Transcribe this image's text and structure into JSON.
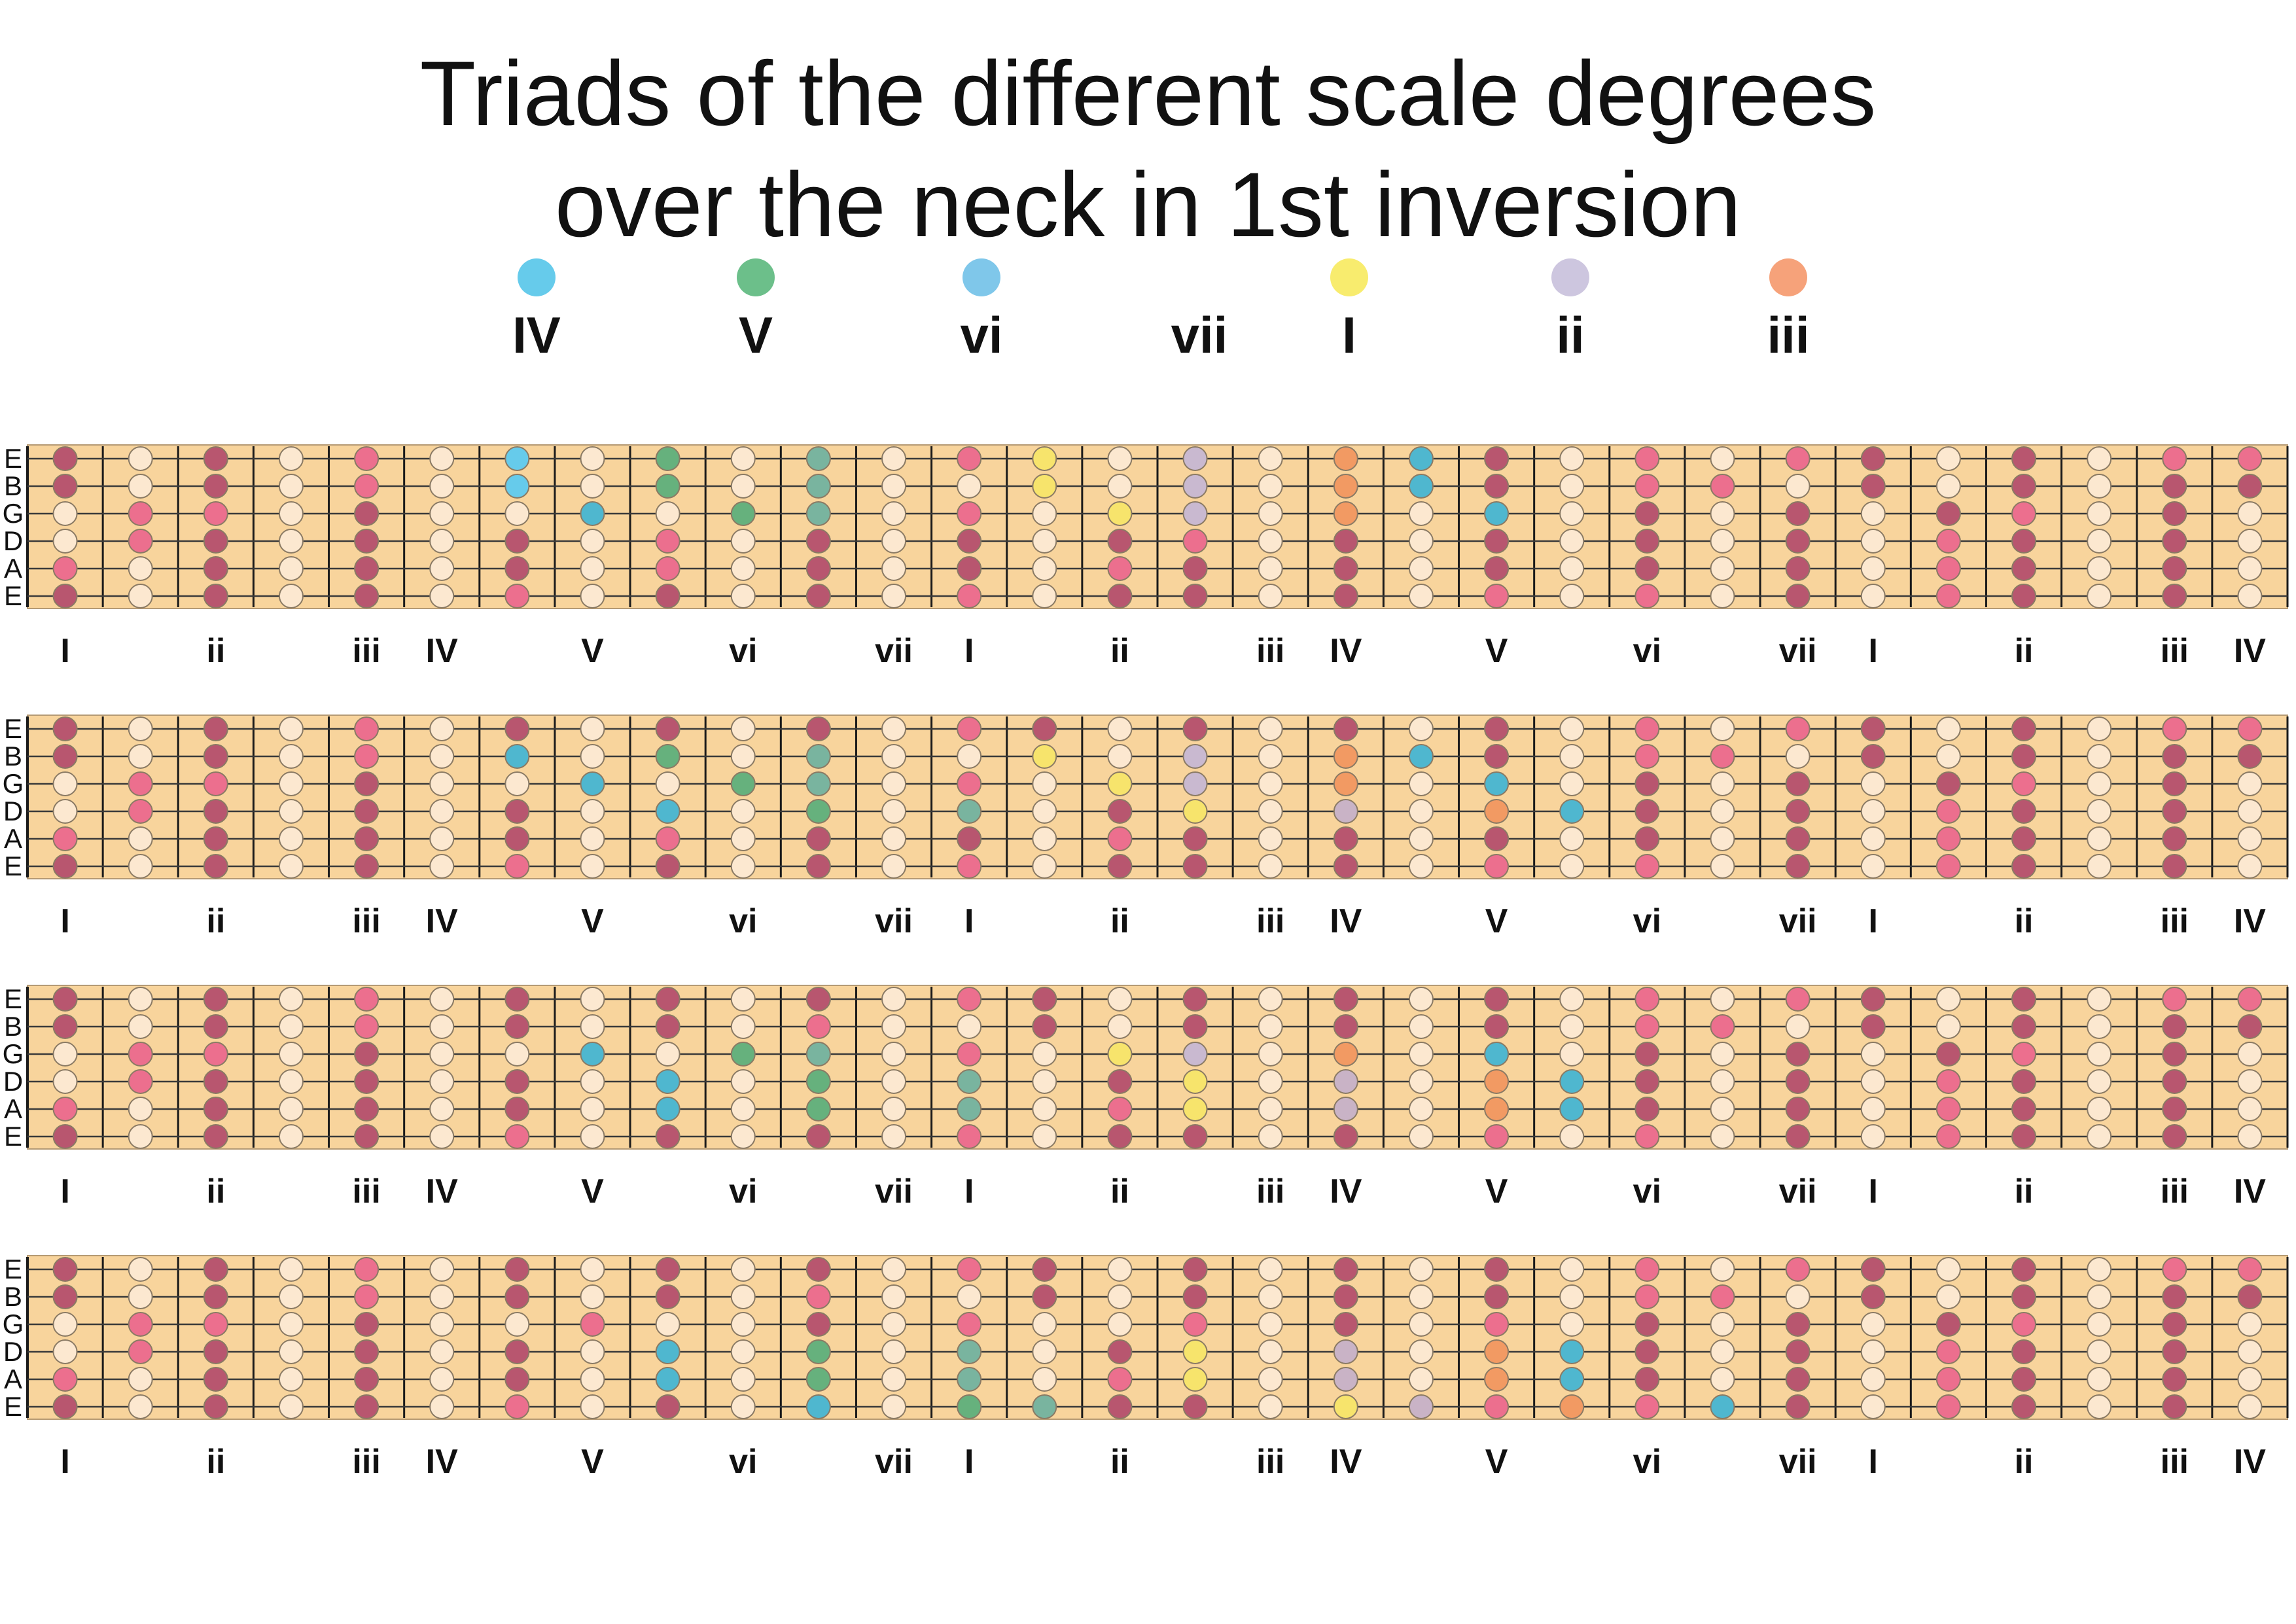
{
  "title": [
    "Triads of the different scale degrees",
    "over the neck in 1st inversion"
  ],
  "colors": {
    "fretboard": "#f8d49c",
    "frame": "#b59a74",
    "string": "#3a3a3a",
    "fret": "#1a1a1a",
    "root": "#b8566f",
    "scale": "#ec6f8e",
    "other": "#fce8d0",
    "IV": "#66cbeb",
    "V": "#6cbf8a",
    "vi": "#7fc7ea",
    "vii": "#ffffff",
    "I": "#f8ec6e",
    "ii": "#cdc6df",
    "iii": "#f6a27a",
    "blue": "#4fb7cf",
    "green": "#66b17d",
    "teal": "#79b49f",
    "yellow": "#f7e46c",
    "lavender": "#c9b9d0",
    "orange": "#f29a63",
    "purple": "#c9b3c6"
  },
  "legend": [
    {
      "label": "IV",
      "color_key": "IV"
    },
    {
      "label": "V",
      "color_key": "V"
    },
    {
      "label": "vi",
      "color_key": "vi"
    },
    {
      "label": "vii",
      "color_key": "vii"
    },
    {
      "label": "I",
      "color_key": "I"
    },
    {
      "label": "ii",
      "color_key": "ii"
    },
    {
      "label": "iii",
      "color_key": "iii"
    }
  ],
  "string_labels": [
    "E",
    "B",
    "G",
    "D",
    "A",
    "E"
  ],
  "degree_labels": [
    "I",
    "ii",
    "iii",
    "IV",
    "V",
    "vi",
    "vii",
    "I",
    "ii",
    "iii",
    "IV",
    "V",
    "vi",
    "vii",
    "I",
    "ii",
    "iii",
    "IV"
  ],
  "label_frets": [
    1,
    3,
    5,
    6,
    8,
    10,
    12,
    13,
    15,
    17,
    18,
    20,
    22,
    24,
    25,
    27,
    29,
    30
  ],
  "fret_count": 30,
  "base_pattern": [
    [
      "r",
      "o",
      "r",
      "o",
      "s",
      "o",
      "r",
      "o",
      "r",
      "o",
      "r",
      "o",
      "s",
      "r",
      "o",
      "r",
      "o",
      "r",
      "o",
      "r",
      "o",
      "s",
      "o",
      "s",
      "r",
      "o",
      "r",
      "o",
      "s",
      "s"
    ],
    [
      "r",
      "o",
      "r",
      "o",
      "s",
      "o",
      "r",
      "o",
      "r",
      "o",
      "s",
      "o",
      "o",
      "r",
      "o",
      "r",
      "o",
      "r",
      "o",
      "r",
      "o",
      "s",
      "s",
      "o",
      "r",
      "o",
      "r",
      "o",
      "r",
      "r"
    ],
    [
      "o",
      "s",
      "s",
      "o",
      "r",
      "o",
      "o",
      "s",
      "o",
      "o",
      "r",
      "o",
      "s",
      "o",
      "o",
      "s",
      "o",
      "r",
      "o",
      "s",
      "o",
      "r",
      "o",
      "r",
      "o",
      "r",
      "s",
      "o",
      "r",
      "o"
    ],
    [
      "o",
      "s",
      "r",
      "o",
      "r",
      "o",
      "r",
      "o",
      "s",
      "o",
      "r",
      "o",
      "r",
      "o",
      "r",
      "s",
      "o",
      "r",
      "o",
      "r",
      "o",
      "r",
      "o",
      "r",
      "o",
      "s",
      "r",
      "o",
      "r",
      "o"
    ],
    [
      "s",
      "o",
      "r",
      "o",
      "r",
      "o",
      "r",
      "o",
      "s",
      "o",
      "r",
      "o",
      "r",
      "o",
      "s",
      "r",
      "o",
      "r",
      "o",
      "r",
      "o",
      "r",
      "o",
      "r",
      "o",
      "s",
      "r",
      "o",
      "r",
      "o"
    ],
    [
      "r",
      "o",
      "r",
      "o",
      "r",
      "o",
      "s",
      "o",
      "r",
      "o",
      "r",
      "o",
      "s",
      "o",
      "r",
      "r",
      "o",
      "r",
      "o",
      "s",
      "o",
      "s",
      "o",
      "r",
      "o",
      "s",
      "r",
      "o",
      "r",
      "o"
    ]
  ],
  "overrides": [
    [
      [
        7,
        0,
        "IV"
      ],
      [
        7,
        1,
        "IV"
      ],
      [
        8,
        2,
        "blue"
      ],
      [
        9,
        0,
        "green"
      ],
      [
        9,
        1,
        "green"
      ],
      [
        10,
        2,
        "green"
      ],
      [
        11,
        0,
        "teal"
      ],
      [
        11,
        1,
        "teal"
      ],
      [
        11,
        2,
        "teal"
      ],
      [
        14,
        0,
        "yellow"
      ],
      [
        14,
        1,
        "yellow"
      ],
      [
        15,
        2,
        "yellow"
      ],
      [
        16,
        0,
        "lavender"
      ],
      [
        16,
        1,
        "lavender"
      ],
      [
        16,
        2,
        "lavender"
      ],
      [
        18,
        0,
        "orange"
      ],
      [
        18,
        1,
        "orange"
      ],
      [
        18,
        2,
        "orange"
      ],
      [
        19,
        0,
        "blue"
      ],
      [
        19,
        1,
        "blue"
      ],
      [
        20,
        2,
        "blue"
      ]
    ],
    [
      [
        7,
        1,
        "blue"
      ],
      [
        8,
        2,
        "blue"
      ],
      [
        9,
        1,
        "green"
      ],
      [
        10,
        2,
        "green"
      ],
      [
        9,
        3,
        "blue"
      ],
      [
        11,
        1,
        "teal"
      ],
      [
        11,
        2,
        "teal"
      ],
      [
        11,
        3,
        "green"
      ],
      [
        13,
        3,
        "teal"
      ],
      [
        14,
        1,
        "yellow"
      ],
      [
        15,
        2,
        "yellow"
      ],
      [
        16,
        1,
        "lavender"
      ],
      [
        16,
        2,
        "lavender"
      ],
      [
        16,
        3,
        "yellow"
      ],
      [
        18,
        1,
        "orange"
      ],
      [
        18,
        2,
        "orange"
      ],
      [
        18,
        3,
        "purple"
      ],
      [
        19,
        1,
        "blue"
      ],
      [
        20,
        2,
        "blue"
      ],
      [
        20,
        3,
        "orange"
      ],
      [
        21,
        3,
        "blue"
      ]
    ],
    [
      [
        8,
        2,
        "blue"
      ],
      [
        9,
        3,
        "blue"
      ],
      [
        9,
        4,
        "blue"
      ],
      [
        10,
        2,
        "green"
      ],
      [
        11,
        3,
        "green"
      ],
      [
        11,
        4,
        "green"
      ],
      [
        11,
        2,
        "teal"
      ],
      [
        13,
        3,
        "teal"
      ],
      [
        13,
        4,
        "teal"
      ],
      [
        15,
        2,
        "yellow"
      ],
      [
        16,
        2,
        "lavender"
      ],
      [
        16,
        3,
        "yellow"
      ],
      [
        16,
        4,
        "yellow"
      ],
      [
        18,
        2,
        "orange"
      ],
      [
        18,
        3,
        "purple"
      ],
      [
        18,
        4,
        "purple"
      ],
      [
        20,
        2,
        "blue"
      ],
      [
        20,
        3,
        "orange"
      ],
      [
        20,
        4,
        "orange"
      ],
      [
        21,
        3,
        "blue"
      ],
      [
        21,
        4,
        "blue"
      ]
    ],
    [
      [
        9,
        3,
        "blue"
      ],
      [
        9,
        4,
        "blue"
      ],
      [
        11,
        3,
        "green"
      ],
      [
        11,
        4,
        "green"
      ],
      [
        11,
        5,
        "blue"
      ],
      [
        13,
        3,
        "teal"
      ],
      [
        13,
        4,
        "teal"
      ],
      [
        13,
        5,
        "green"
      ],
      [
        14,
        5,
        "teal"
      ],
      [
        16,
        3,
        "yellow"
      ],
      [
        16,
        4,
        "yellow"
      ],
      [
        18,
        3,
        "purple"
      ],
      [
        18,
        4,
        "purple"
      ],
      [
        18,
        5,
        "yellow"
      ],
      [
        19,
        5,
        "purple"
      ],
      [
        20,
        3,
        "orange"
      ],
      [
        20,
        4,
        "orange"
      ],
      [
        21,
        3,
        "blue"
      ],
      [
        21,
        4,
        "blue"
      ],
      [
        21,
        5,
        "orange"
      ],
      [
        23,
        5,
        "blue"
      ]
    ]
  ]
}
